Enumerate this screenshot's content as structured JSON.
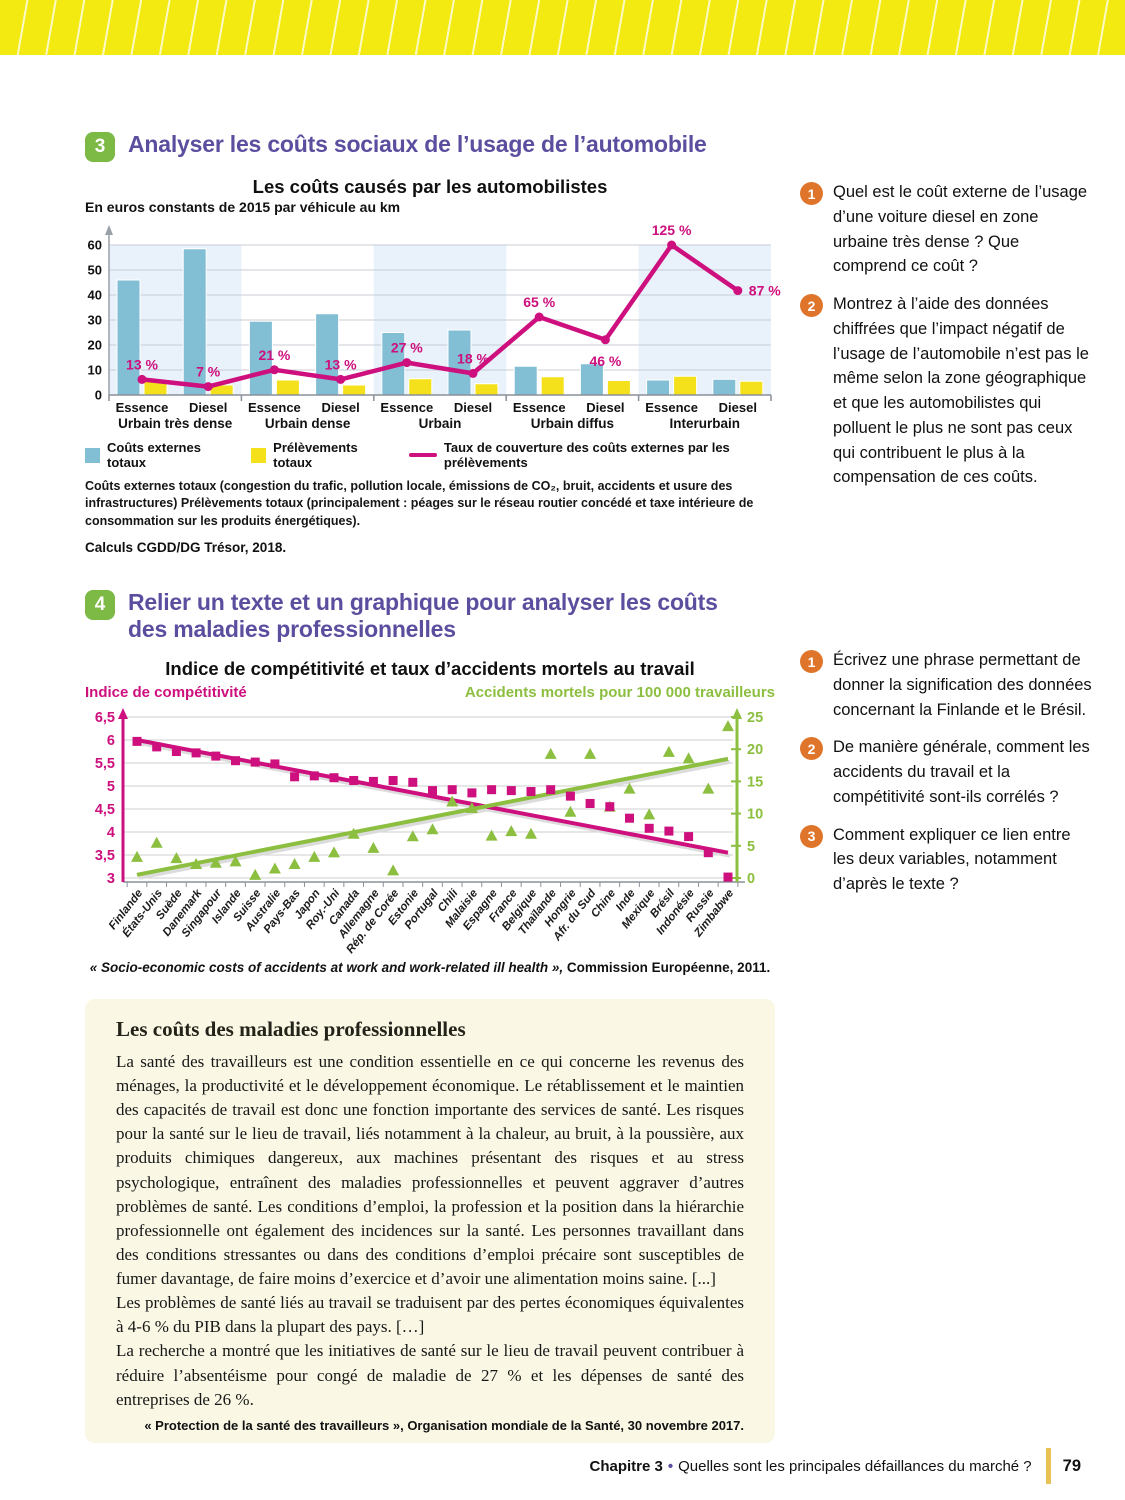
{
  "colors": {
    "accent_purple": "#5C4E9F",
    "badge_green": "#7CB945",
    "question_orange": "#DF752B",
    "magenta": "#CE0F7E",
    "chart_green": "#8CBF3F",
    "bar_blue": "#82BFD5",
    "bar_yellow": "#F4E01B",
    "panel_blue": "#E9F1FB",
    "stripe_yellow": "#F3EA12",
    "gold_bar": "#E8C254",
    "textbox_bg": "#FAF8E5"
  },
  "exercise3": {
    "number": "3",
    "title": "Analyser les coûts sociaux de l’usage de l’automobile",
    "source": "Calculs CGDD/DG Trésor, 2018.",
    "questions": [
      {
        "number": "1",
        "text": "Quel est le coût externe de l’usage d’une voiture diesel en zone urbaine très dense ? Que comprend ce coût ?"
      },
      {
        "number": "2",
        "text": "Montrez à l’aide des données chiffrées que l’impact négatif de l’usage de l’automobile n’est pas le même selon la zone géographique et que les automobilistes qui polluent le plus ne sont pas ceux qui contribuent le plus à la compensation de ces coûts."
      }
    ]
  },
  "exercise4": {
    "number": "4",
    "title": "Relier un texte et un graphique pour analyser les coûts des maladies professionnelles",
    "questions": [
      {
        "number": "1",
        "text": "Écrivez une phrase permettant de donner la signification des données concernant la Finlande et le Brésil."
      },
      {
        "number": "2",
        "text": "De manière générale, comment les accidents du travail et la compétitivité sont-ils corrélés ?"
      },
      {
        "number": "3",
        "text": "Comment expliquer ce lien entre les deux variables, notamment d’après le texte ?"
      }
    ]
  },
  "chart_data": [
    {
      "type": "bar",
      "title": "Les coûts causés par les automobilistes",
      "unit_label": "En euros constants de 2015 par véhicule au km",
      "groups": [
        "Urbain très dense",
        "Urbain dense",
        "Urbain",
        "Urbain diffus",
        "Interurbain"
      ],
      "fuels": [
        "Essence",
        "Diesel"
      ],
      "ylim": [
        0,
        60
      ],
      "yticks": [
        0,
        10,
        20,
        30,
        40,
        50,
        60
      ],
      "series": [
        {
          "name": "Coûts externes totaux",
          "color": "#82BFD5",
          "values": [
            46,
            58.5,
            29.5,
            32.5,
            25,
            26,
            11.5,
            12.5,
            6,
            6.3
          ]
        },
        {
          "name": "Prélèvements totaux",
          "color": "#F4E01B",
          "values": [
            6,
            4,
            6,
            4,
            6.5,
            4.5,
            7.3,
            5.8,
            7.5,
            5.5
          ]
        },
        {
          "name": "Taux de couverture des coûts externes par les prélèvements",
          "color": "#CE0F7E",
          "type": "line",
          "values_percent": [
            13,
            7,
            21,
            13,
            27,
            18,
            65,
            46,
            125,
            87
          ]
        }
      ],
      "footnote1": "Coûts externes totaux (congestion du trafic, pollution locale, émissions de CO₂, bruit, accidents et usure des infrastructures)",
      "footnote2": "Prélèvements totaux (principalement : péages sur le réseau routier concédé et taxe intérieure de consommation sur les produits énergétiques)."
    },
    {
      "type": "scatter",
      "title": "Indice de compétitivité et taux d’accidents mortels au travail",
      "left_axis_label": "Indice de compétitivité",
      "right_axis_label": "Accidents mortels pour 100 000 travailleurs",
      "left_ylim": [
        3,
        6.5
      ],
      "right_ylim": [
        0,
        25
      ],
      "left_ticks": [
        "6,5",
        "6",
        "5,5",
        "5",
        "4,5",
        "4",
        "3,5",
        "3"
      ],
      "left_tick_values": [
        6.5,
        6,
        5.5,
        5,
        4.5,
        4,
        3.5,
        3
      ],
      "right_ticks": [
        25,
        20,
        15,
        10,
        5,
        0
      ],
      "countries": [
        "Finlande",
        "États-Unis",
        "Suède",
        "Danemark",
        "Singapour",
        "Islande",
        "Suisse",
        "Australie",
        "Pays-Bas",
        "Japon",
        "Roy.-Uni",
        "Canada",
        "Allemagne",
        "Rép. de Corée",
        "Estonie",
        "Portugal",
        "Chili",
        "Malaisie",
        "Espagne",
        "France",
        "Belgique",
        "Thaïlande",
        "Hongrie",
        "Afr. du Sud",
        "Chine",
        "Inde",
        "Mexique",
        "Brésil",
        "Indonésie",
        "Russie",
        "Zimbabwe"
      ],
      "series": [
        {
          "name": "Indice de compétitivité",
          "marker": "square",
          "color": "#CE0F7E",
          "values": [
            5.97,
            5.85,
            5.75,
            5.72,
            5.65,
            5.55,
            5.52,
            5.48,
            5.2,
            5.22,
            5.18,
            5.12,
            5.1,
            5.12,
            5.08,
            4.9,
            4.92,
            4.85,
            4.92,
            4.9,
            4.88,
            4.92,
            4.78,
            4.62,
            4.55,
            4.3,
            4.08,
            4.02,
            3.9,
            3.55,
            3.02
          ]
        },
        {
          "name": "Accidents mortels pour 100 000 travailleurs",
          "marker": "triangle",
          "color": "#8CBF3F",
          "values": [
            3.2,
            5.4,
            3.0,
            2.1,
            2.3,
            2.5,
            0.4,
            1.4,
            2.1,
            3.2,
            3.9,
            6.8,
            4.6,
            1.1,
            6.4,
            7.5,
            11.8,
            10.8,
            6.5,
            7.2,
            6.8,
            19.2,
            10.2,
            19.2,
            11.0,
            13.8,
            9.8,
            19.5,
            18.5,
            13.8,
            23.5
          ]
        }
      ],
      "trend_competitiveness": [
        6.0,
        3.55
      ],
      "trend_accidents": [
        0.5,
        18.5
      ],
      "source_italic": "« Socio-economic costs of accidents at work and work-related ill health »,",
      "source_rest": " Commission Européenne, 2011."
    }
  ],
  "textbox": {
    "heading": "Les coûts des maladies professionnelles",
    "paragraphs": [
      "La santé des travailleurs est une condition essentielle en ce qui concerne les revenus des ménages, la productivité et le développement économique. Le rétablissement et le maintien des capacités de travail est donc une fonction importante des services de santé. Les risques pour la santé sur le lieu de travail, liés notamment à la chaleur, au bruit, à la poussière, aux produits chimiques dangereux, aux machines présentant des risques et au stress psychologique, entraînent des maladies professionnelles et peuvent aggraver d’autres problèmes de santé. Les conditions d’emploi, la profession et la position dans la hiérarchie professionnelle ont également des incidences sur la santé. Les personnes travaillant dans des conditions stressantes ou dans des conditions d’emploi précaire sont susceptibles de fumer davantage, de faire moins d’exercice et d’avoir une alimentation moins saine. [...]",
      "Les problèmes de santé liés au travail se traduisent par des pertes économiques équivalentes à 4-6 % du PIB dans la plupart des pays. […]",
      "La recherche a montré que les initiatives de santé sur le lieu de travail peuvent contribuer à réduire l’absentéisme pour congé de maladie de 27 % et les dépenses de santé des entreprises de 26 %."
    ],
    "source": "« Protection de la santé des travailleurs », Organisation mondiale de la Santé, 30 novembre 2017."
  },
  "footer": {
    "chapter": "Chapitre 3",
    "separator": "•",
    "title": "Quelles sont les principales défaillances du marché ?",
    "page_number": "79"
  }
}
